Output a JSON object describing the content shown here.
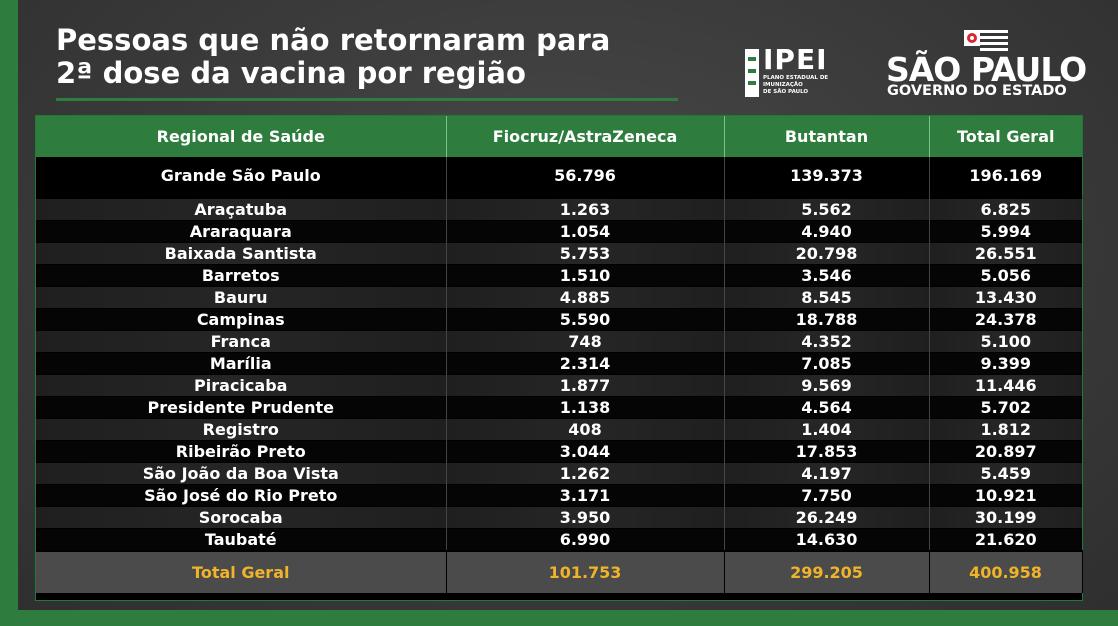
{
  "title": {
    "line1": "Pessoas que não retornaram para",
    "line2": "2ª dose da vacina por região"
  },
  "logos": {
    "ipei": {
      "word": "IPEI",
      "sub1": "PLANO ESTADUAL DE",
      "sub2": "IMUNIZAÇÃO",
      "sub3": "DE SÃO PAULO"
    },
    "sao_paulo": {
      "title": "SÃO PAULO",
      "subtitle": "GOVERNO DO ESTADO"
    }
  },
  "colors": {
    "brand_green": "#2e7d3e",
    "total_gold": "#f0b32a"
  },
  "table": {
    "headers": [
      "Regional de Saúde",
      "Fiocruz/AstraZeneca",
      "Butantan",
      "Total Geral"
    ],
    "featured": [
      "Grande São Paulo",
      "56.796",
      "139.373",
      "196.169"
    ],
    "rows": [
      [
        "Araçatuba",
        "1.263",
        "5.562",
        "6.825"
      ],
      [
        "Araraquara",
        "1.054",
        "4.940",
        "5.994"
      ],
      [
        "Baixada Santista",
        "5.753",
        "20.798",
        "26.551"
      ],
      [
        "Barretos",
        "1.510",
        "3.546",
        "5.056"
      ],
      [
        "Bauru",
        "4.885",
        "8.545",
        "13.430"
      ],
      [
        "Campinas",
        "5.590",
        "18.788",
        "24.378"
      ],
      [
        "Franca",
        "748",
        "4.352",
        "5.100"
      ],
      [
        "Marília",
        "2.314",
        "7.085",
        "9.399"
      ],
      [
        "Piracicaba",
        "1.877",
        "9.569",
        "11.446"
      ],
      [
        "Presidente Prudente",
        "1.138",
        "4.564",
        "5.702"
      ],
      [
        "Registro",
        "408",
        "1.404",
        "1.812"
      ],
      [
        "Ribeirão Preto",
        "3.044",
        "17.853",
        "20.897"
      ],
      [
        "São João da Boa Vista",
        "1.262",
        "4.197",
        "5.459"
      ],
      [
        "São José do Rio Preto",
        "3.171",
        "7.750",
        "10.921"
      ],
      [
        "Sorocaba",
        "3.950",
        "26.249",
        "30.199"
      ],
      [
        "Taubaté",
        "6.990",
        "14.630",
        "21.620"
      ]
    ],
    "total": [
      "Total Geral",
      "101.753",
      "299.205",
      "400.958"
    ]
  }
}
